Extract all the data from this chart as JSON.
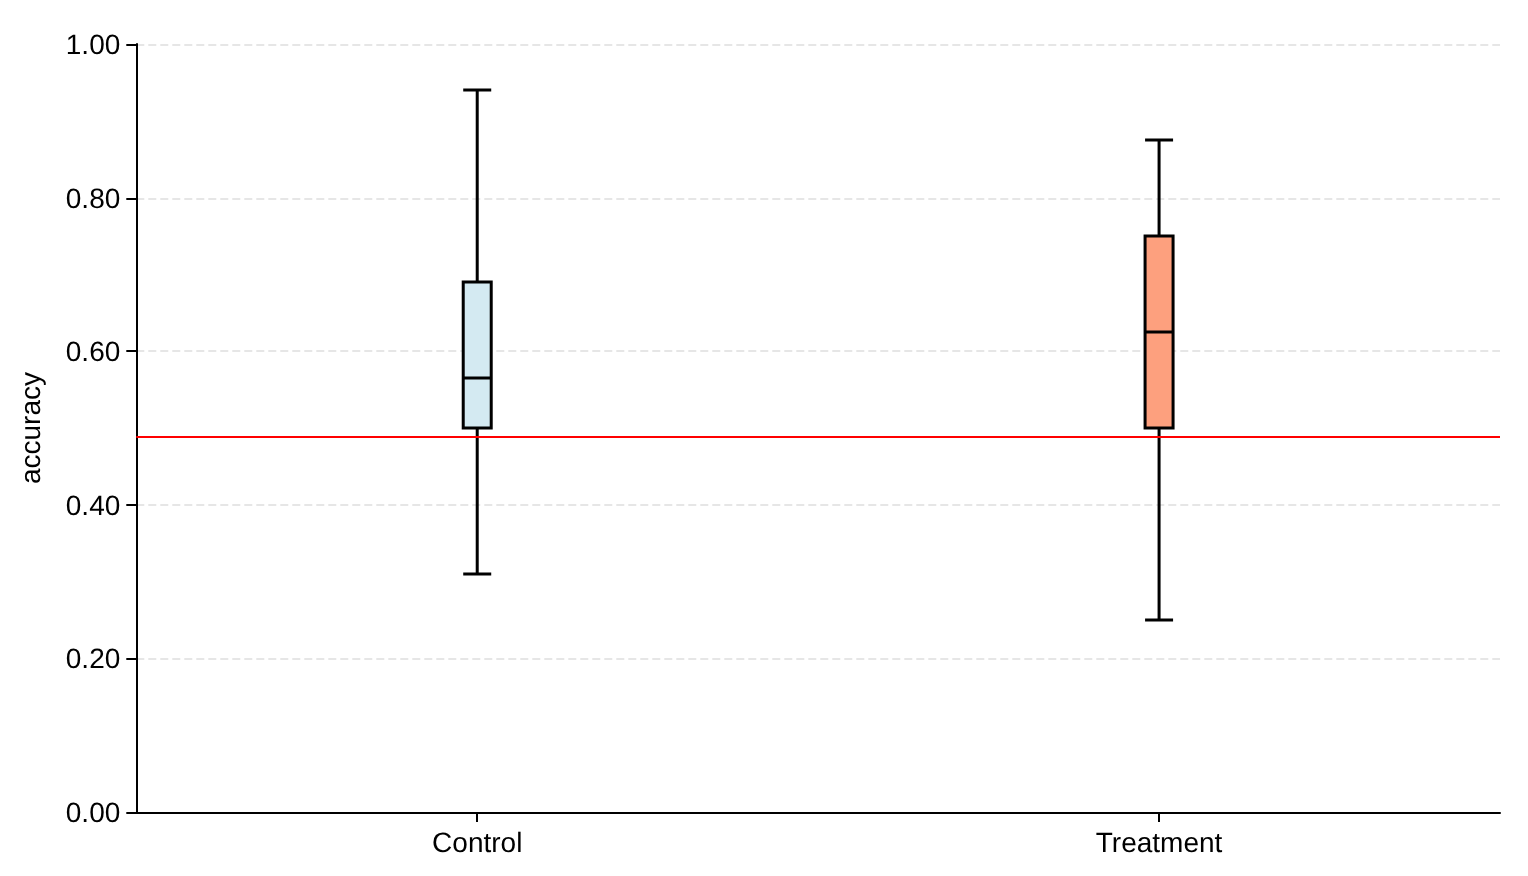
{
  "chart_data": {
    "type": "box",
    "ylabel": "accuracy",
    "categories": [
      "Control",
      "Treatment"
    ],
    "boxes": [
      {
        "low": 0.31,
        "q1": 0.5,
        "median": 0.565,
        "q3": 0.69,
        "high": 0.94
      },
      {
        "low": 0.25,
        "q1": 0.5,
        "median": 0.625,
        "q3": 0.75,
        "high": 0.875
      }
    ],
    "colors": [
      "#d4eaf2",
      "#fda07e"
    ],
    "ylim": [
      0,
      1
    ],
    "yticks": [
      {
        "value": 0,
        "label": "0.00"
      },
      {
        "value": 0.2,
        "label": "0.20"
      },
      {
        "value": 0.4,
        "label": "0.40"
      },
      {
        "value": 0.6,
        "label": "0.60"
      },
      {
        "value": 0.8,
        "label": "0.80"
      },
      {
        "value": 1,
        "label": "1.00"
      }
    ],
    "ref_lines": [
      {
        "axis": "y",
        "value": 0.49,
        "color": "#ff0000"
      }
    ],
    "grid": "y"
  }
}
